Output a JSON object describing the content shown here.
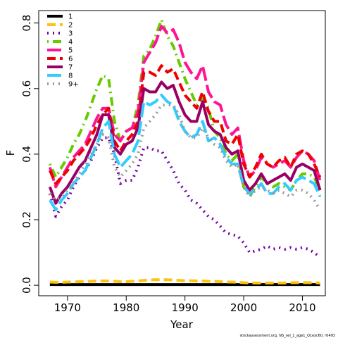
{
  "chart_data": {
    "type": "line",
    "x_label": "Year",
    "y_label": "F",
    "footnote": "stockassessment.org, NS_sel_1_age1_Q1exc60, r0493",
    "x": [
      1967,
      1968,
      1969,
      1970,
      1971,
      1972,
      1973,
      1974,
      1975,
      1976,
      1977,
      1978,
      1979,
      1980,
      1981,
      1982,
      1983,
      1984,
      1985,
      1986,
      1987,
      1988,
      1989,
      1990,
      1991,
      1992,
      1993,
      1994,
      1995,
      1996,
      1997,
      1998,
      1999,
      2000,
      2001,
      2002,
      2003,
      2004,
      2005,
      2006,
      2007,
      2008,
      2009,
      2010,
      2011,
      2012,
      2013
    ],
    "xlim": [
      1965.1,
      2013.9
    ],
    "xticks": [
      1970,
      1980,
      1990,
      2000,
      2010
    ],
    "ylim": [
      -0.032,
      0.838
    ],
    "yticks": [
      {
        "value": 0,
        "label": "0.0"
      },
      0.2,
      0.4,
      0.6,
      0.8
    ],
    "legend": "top-left",
    "series": [
      {
        "name": "1",
        "color": "#000000",
        "line_style": "solid",
        "values": [
          0.002,
          0.002,
          0.002,
          0.002,
          0.002,
          0.002,
          0.002,
          0.002,
          0.002,
          0.002,
          0.002,
          0.002,
          0.002,
          0.002,
          0.002,
          0.002,
          0.002,
          0.002,
          0.002,
          0.002,
          0.002,
          0.002,
          0.002,
          0.002,
          0.002,
          0.002,
          0.002,
          0.002,
          0.002,
          0.002,
          0.002,
          0.002,
          0.002,
          0.002,
          0.002,
          0.002,
          0.002,
          0.002,
          0.002,
          0.002,
          0.002,
          0.002,
          0.002,
          0.002,
          0.002,
          0.002,
          0.002
        ]
      },
      {
        "name": "2",
        "color": "#FFC20E",
        "line_style": "dashed",
        "values": [
          0.01,
          0.009,
          0.009,
          0.01,
          0.01,
          0.011,
          0.012,
          0.012,
          0.013,
          0.013,
          0.013,
          0.012,
          0.011,
          0.011,
          0.012,
          0.013,
          0.015,
          0.016,
          0.017,
          0.017,
          0.017,
          0.016,
          0.015,
          0.014,
          0.014,
          0.013,
          0.013,
          0.012,
          0.012,
          0.011,
          0.01,
          0.01,
          0.009,
          0.008,
          0.007,
          0.007,
          0.007,
          0.007,
          0.007,
          0.007,
          0.007,
          0.008,
          0.008,
          0.008,
          0.008,
          0.008,
          0.007
        ]
      },
      {
        "name": "3",
        "color": "#7000A0",
        "line_style": "dotted",
        "values": [
          0.28,
          0.21,
          0.24,
          0.26,
          0.3,
          0.33,
          0.35,
          0.38,
          0.42,
          0.45,
          0.45,
          0.4,
          0.31,
          0.32,
          0.32,
          0.36,
          0.42,
          0.42,
          0.41,
          0.41,
          0.38,
          0.35,
          0.31,
          0.29,
          0.26,
          0.25,
          0.23,
          0.21,
          0.2,
          0.18,
          0.16,
          0.155,
          0.15,
          0.13,
          0.1,
          0.105,
          0.11,
          0.12,
          0.11,
          0.115,
          0.11,
          0.115,
          0.11,
          0.115,
          0.11,
          0.1,
          0.085
        ]
      },
      {
        "name": "4",
        "color": "#66CC00",
        "line_style": "dotdash",
        "values": [
          0.37,
          0.33,
          0.36,
          0.39,
          0.43,
          0.46,
          0.5,
          0.55,
          0.6,
          0.64,
          0.63,
          0.5,
          0.44,
          0.47,
          0.48,
          0.55,
          0.7,
          0.72,
          0.76,
          0.81,
          0.76,
          0.73,
          0.68,
          0.63,
          0.59,
          0.55,
          0.57,
          0.54,
          0.47,
          0.45,
          0.4,
          0.38,
          0.4,
          0.3,
          0.27,
          0.3,
          0.33,
          0.31,
          0.3,
          0.31,
          0.3,
          0.29,
          0.32,
          0.34,
          0.34,
          0.33,
          0.29
        ]
      },
      {
        "name": "5",
        "color": "#FF1493",
        "line_style": "longdash",
        "values": [
          0.36,
          0.3,
          0.33,
          0.36,
          0.39,
          0.41,
          0.43,
          0.47,
          0.51,
          0.54,
          0.54,
          0.46,
          0.44,
          0.47,
          0.48,
          0.53,
          0.68,
          0.71,
          0.74,
          0.79,
          0.77,
          0.78,
          0.74,
          0.68,
          0.65,
          0.63,
          0.67,
          0.59,
          0.56,
          0.55,
          0.49,
          0.46,
          0.48,
          0.38,
          0.33,
          0.35,
          0.39,
          0.37,
          0.36,
          0.37,
          0.38,
          0.36,
          0.39,
          0.41,
          0.4,
          0.38,
          0.32
        ]
      },
      {
        "name": "6",
        "color": "#EE0000",
        "line_style": "dashed",
        "values": [
          0.35,
          0.31,
          0.33,
          0.35,
          0.38,
          0.4,
          0.42,
          0.45,
          0.49,
          0.52,
          0.54,
          0.44,
          0.41,
          0.44,
          0.46,
          0.5,
          0.65,
          0.65,
          0.64,
          0.67,
          0.65,
          0.66,
          0.62,
          0.58,
          0.56,
          0.54,
          0.59,
          0.53,
          0.5,
          0.5,
          0.44,
          0.43,
          0.46,
          0.37,
          0.33,
          0.36,
          0.4,
          0.37,
          0.36,
          0.38,
          0.39,
          0.36,
          0.4,
          0.41,
          0.4,
          0.37,
          0.33
        ]
      },
      {
        "name": "7",
        "color": "#990066",
        "line_style": "solid",
        "values": [
          0.3,
          0.25,
          0.28,
          0.3,
          0.33,
          0.36,
          0.38,
          0.42,
          0.46,
          0.52,
          0.52,
          0.42,
          0.4,
          0.43,
          0.44,
          0.48,
          0.6,
          0.59,
          0.59,
          0.62,
          0.6,
          0.61,
          0.56,
          0.52,
          0.5,
          0.5,
          0.56,
          0.49,
          0.47,
          0.46,
          0.42,
          0.4,
          0.41,
          0.32,
          0.29,
          0.31,
          0.34,
          0.31,
          0.32,
          0.33,
          0.34,
          0.32,
          0.36,
          0.37,
          0.36,
          0.35,
          0.29
        ]
      },
      {
        "name": "8",
        "color": "#33CCFF",
        "line_style": "longdash",
        "values": [
          0.26,
          0.23,
          0.26,
          0.28,
          0.31,
          0.33,
          0.35,
          0.39,
          0.43,
          0.48,
          0.5,
          0.4,
          0.36,
          0.38,
          0.4,
          0.44,
          0.56,
          0.55,
          0.56,
          0.58,
          0.56,
          0.55,
          0.5,
          0.47,
          0.45,
          0.46,
          0.5,
          0.44,
          0.45,
          0.43,
          0.39,
          0.37,
          0.37,
          0.3,
          0.28,
          0.29,
          0.31,
          0.28,
          0.28,
          0.3,
          0.31,
          0.29,
          0.32,
          0.33,
          0.32,
          0.31,
          0.27
        ]
      },
      {
        "name": "9+",
        "color": "#999999",
        "line_style": "dotted",
        "values": [
          0.28,
          0.26,
          0.27,
          0.29,
          0.31,
          0.34,
          0.37,
          0.4,
          0.43,
          0.46,
          0.45,
          0.36,
          0.33,
          0.35,
          0.37,
          0.4,
          0.48,
          0.5,
          0.52,
          0.55,
          0.55,
          0.55,
          0.52,
          0.47,
          0.45,
          0.45,
          0.48,
          0.45,
          0.43,
          0.42,
          0.38,
          0.36,
          0.37,
          0.3,
          0.27,
          0.29,
          0.3,
          0.29,
          0.28,
          0.29,
          0.28,
          0.27,
          0.29,
          0.29,
          0.28,
          0.26,
          0.23
        ]
      }
    ]
  }
}
